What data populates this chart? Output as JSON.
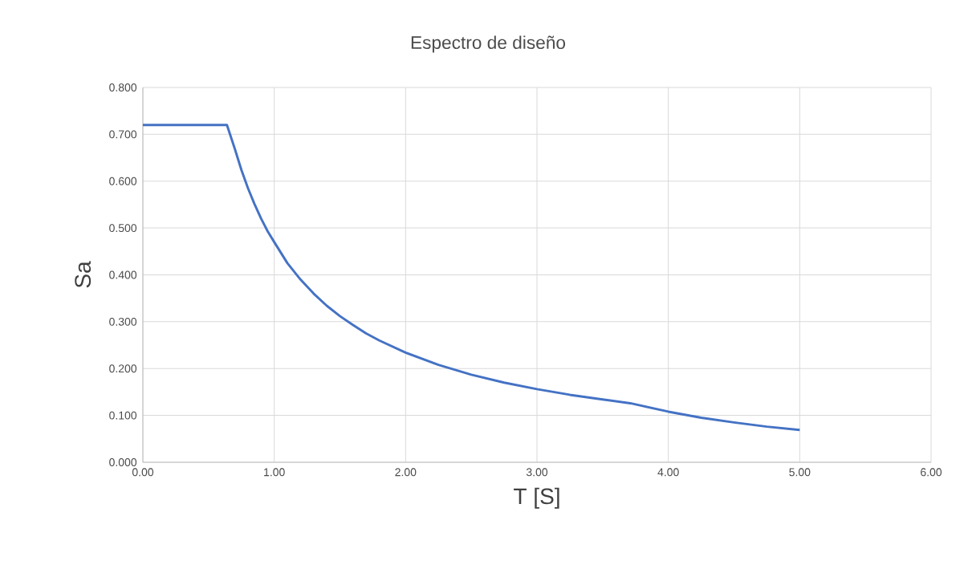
{
  "chart_data": {
    "type": "line",
    "title": "Espectro de diseño",
    "xlabel": "T [S]",
    "ylabel": "Sa",
    "x": [
      0,
      0.64,
      0.7,
      0.75,
      0.8,
      0.85,
      0.9,
      0.95,
      1.0,
      1.1,
      1.2,
      1.3,
      1.4,
      1.5,
      1.6,
      1.7,
      1.8,
      2.0,
      2.25,
      2.5,
      2.75,
      3.0,
      3.25,
      3.5,
      3.71,
      4.0,
      4.25,
      4.5,
      4.75,
      5.0
    ],
    "series": [
      {
        "color": "#4472c4",
        "values": [
          0.72,
          0.72,
          0.669,
          0.624,
          0.585,
          0.551,
          0.52,
          0.493,
          0.47,
          0.425,
          0.39,
          0.36,
          0.334,
          0.312,
          0.293,
          0.275,
          0.26,
          0.234,
          0.208,
          0.187,
          0.17,
          0.156,
          0.144,
          0.134,
          0.126,
          0.108,
          0.095,
          0.085,
          0.076,
          0.069
        ]
      }
    ],
    "xlim": [
      0,
      6
    ],
    "ylim": [
      0,
      0.8
    ],
    "xticks": [
      {
        "value": 0,
        "label": "0.00"
      },
      {
        "value": 1,
        "label": "1.00"
      },
      {
        "value": 2,
        "label": "2.00"
      },
      {
        "value": 3,
        "label": "3.00"
      },
      {
        "value": 4,
        "label": "4.00"
      },
      {
        "value": 5,
        "label": "5.00"
      },
      {
        "value": 6,
        "label": "6.00"
      }
    ],
    "yticks": [
      {
        "value": 0,
        "label": "0.000"
      },
      {
        "value": 0.1,
        "label": "0.100"
      },
      {
        "value": 0.2,
        "label": "0.200"
      },
      {
        "value": 0.3,
        "label": "0.300"
      },
      {
        "value": 0.4,
        "label": "0.400"
      },
      {
        "value": 0.5,
        "label": "0.500"
      },
      {
        "value": 0.6,
        "label": "0.600"
      },
      {
        "value": 0.7,
        "label": "0.700"
      },
      {
        "value": 0.8,
        "label": "0.800"
      }
    ],
    "grid": true,
    "marker": "none",
    "line_style": "solid"
  }
}
